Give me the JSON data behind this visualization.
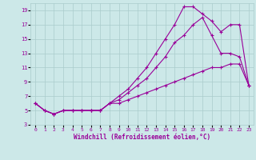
{
  "xlabel": "Windchill (Refroidissement éolien,°C)",
  "bg_color": "#cce8e8",
  "line_color": "#990099",
  "grid_color": "#aacccc",
  "xlim": [
    -0.5,
    23.5
  ],
  "ylim": [
    3,
    20
  ],
  "xticks": [
    0,
    1,
    2,
    3,
    4,
    5,
    6,
    7,
    8,
    9,
    10,
    11,
    12,
    13,
    14,
    15,
    16,
    17,
    18,
    19,
    20,
    21,
    22,
    23
  ],
  "yticks": [
    3,
    5,
    7,
    9,
    11,
    13,
    15,
    17,
    19
  ],
  "line1_x": [
    0,
    1,
    2,
    3,
    4,
    5,
    6,
    7,
    8,
    9,
    10,
    11,
    12,
    13,
    14,
    15,
    16,
    17,
    18,
    19,
    20,
    21,
    22,
    23
  ],
  "line1_y": [
    6,
    5,
    4.5,
    5,
    5,
    5,
    5,
    5,
    6,
    7,
    8,
    9.5,
    11,
    13,
    15,
    17,
    19.5,
    19.5,
    18.5,
    17.5,
    16,
    17,
    17,
    8.5
  ],
  "line2_x": [
    0,
    1,
    2,
    3,
    4,
    5,
    6,
    7,
    8,
    9,
    10,
    11,
    12,
    13,
    14,
    15,
    16,
    17,
    18,
    19,
    20,
    21,
    22,
    23
  ],
  "line2_y": [
    6,
    5,
    4.5,
    5,
    5,
    5,
    5,
    5,
    6,
    6.5,
    7.5,
    8.5,
    9.5,
    11,
    12.5,
    14.5,
    15.5,
    17,
    18,
    15.5,
    13,
    13,
    12.5,
    8.5
  ],
  "line3_x": [
    0,
    1,
    2,
    3,
    4,
    5,
    6,
    7,
    8,
    9,
    10,
    11,
    12,
    13,
    14,
    15,
    16,
    17,
    18,
    19,
    20,
    21,
    22,
    23
  ],
  "line3_y": [
    6,
    5,
    4.5,
    5,
    5,
    5,
    5,
    5,
    6,
    6,
    6.5,
    7,
    7.5,
    8,
    8.5,
    9,
    9.5,
    10,
    10.5,
    11,
    11,
    11.5,
    11.5,
    8.5
  ]
}
